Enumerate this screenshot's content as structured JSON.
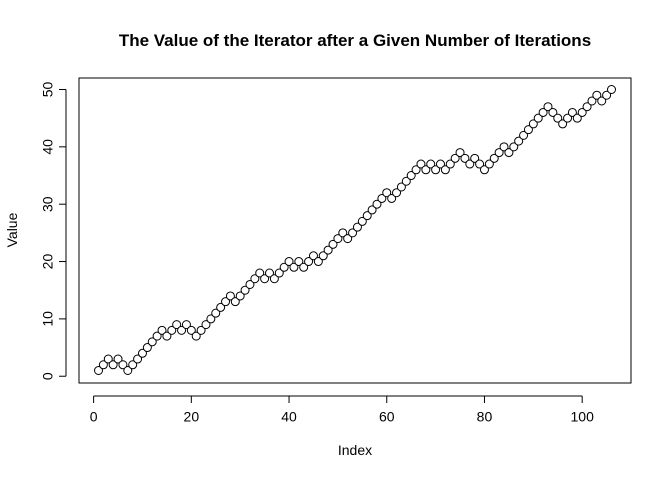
{
  "chart_data": {
    "type": "scatter",
    "title": "The Value of the Iterator after a Given Number of Iterations",
    "xlabel": "Index",
    "ylabel": "Value",
    "xlim": [
      1,
      106
    ],
    "ylim": [
      1,
      50
    ],
    "x_ticks": [
      0,
      20,
      40,
      60,
      80,
      100
    ],
    "y_ticks": [
      0,
      10,
      20,
      30,
      40,
      50
    ],
    "grid": false,
    "marker": "open-circle",
    "series": [
      {
        "x": [
          1,
          2,
          3,
          4,
          5,
          6,
          7,
          8,
          9,
          10,
          11,
          12,
          13,
          14,
          15,
          16,
          17,
          18,
          19,
          20,
          21,
          22,
          23,
          24,
          25,
          26,
          27,
          28,
          29,
          30,
          31,
          32,
          33,
          34,
          35,
          36,
          37,
          38,
          39,
          40,
          41,
          42,
          43,
          44,
          45,
          46,
          47,
          48,
          49,
          50,
          51,
          52,
          53,
          54,
          55,
          56,
          57,
          58,
          59,
          60,
          61,
          62,
          63,
          64,
          65,
          66,
          67,
          68,
          69,
          70,
          71,
          72,
          73,
          74,
          75,
          76,
          77,
          78,
          79,
          80,
          81,
          82,
          83,
          84,
          85,
          86,
          87,
          88,
          89,
          90,
          91,
          92,
          93,
          94,
          95,
          96,
          97,
          98,
          99,
          100,
          101,
          102,
          103,
          104,
          105,
          106
        ],
        "values": [
          1,
          2,
          3,
          2,
          3,
          2,
          1,
          2,
          3,
          4,
          5,
          6,
          7,
          8,
          7,
          8,
          9,
          8,
          9,
          8,
          7,
          8,
          9,
          10,
          11,
          12,
          13,
          14,
          13,
          14,
          15,
          16,
          17,
          18,
          17,
          18,
          17,
          18,
          19,
          20,
          19,
          20,
          19,
          20,
          21,
          20,
          21,
          22,
          23,
          24,
          25,
          24,
          25,
          26,
          27,
          28,
          29,
          30,
          31,
          32,
          31,
          32,
          33,
          34,
          35,
          36,
          37,
          36,
          37,
          36,
          37,
          36,
          37,
          38,
          39,
          38,
          37,
          38,
          37,
          36,
          37,
          38,
          39,
          40,
          39,
          40,
          41,
          42,
          43,
          44,
          45,
          46,
          47,
          46,
          45,
          44,
          45,
          46,
          45,
          46,
          47,
          48,
          49,
          48,
          49,
          50
        ]
      }
    ]
  }
}
